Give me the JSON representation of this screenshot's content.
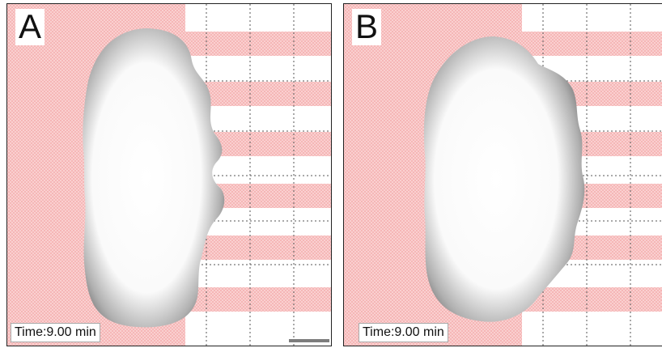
{
  "panels": [
    {
      "label": "A",
      "time_text": "Time:9.00 min"
    },
    {
      "label": "B",
      "time_text": "Time:9.00 min"
    }
  ],
  "colors": {
    "pattern": "#f5b5b5",
    "pattern_fine": "#f8c8c8",
    "grid": "#555555",
    "droplet_center": "#ffffff",
    "droplet_edge": "#6a6a6a",
    "frame": "#222222"
  }
}
